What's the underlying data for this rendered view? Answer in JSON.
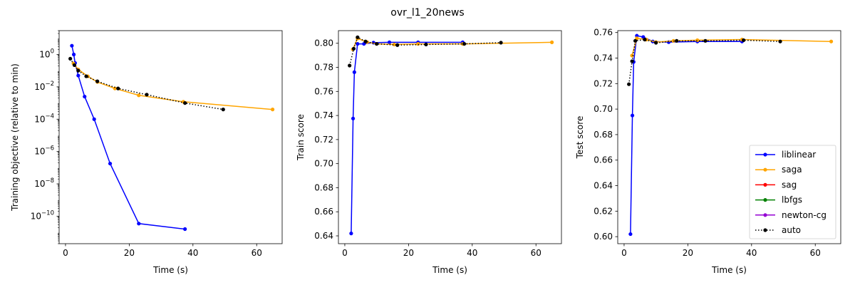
{
  "suptitle": "ovr_l1_20news",
  "chart_data": [
    {
      "type": "line",
      "xlabel": "Time (s)",
      "ylabel": "Training objective (relative to min)",
      "yscale": "log",
      "xlim": [
        -2,
        68
      ],
      "ylim": [
        2e-12,
        30
      ],
      "xticks": [
        0,
        20,
        40,
        60
      ],
      "xtick_labels": [
        "0",
        "20",
        "40",
        "60"
      ],
      "yticks": [
        1e-10,
        1e-08,
        1e-06,
        0.0001,
        0.01,
        1
      ],
      "ytick_labels": [
        {
          "base": "10",
          "exp": "−10"
        },
        {
          "base": "10",
          "exp": "−8"
        },
        {
          "base": "10",
          "exp": "−6"
        },
        {
          "base": "10",
          "exp": "−4"
        },
        {
          "base": "10",
          "exp": "−2"
        },
        {
          "base": "10",
          "exp": "0"
        }
      ],
      "series": [
        {
          "name": "liblinear",
          "color": "#0000ff",
          "style": "solid",
          "x": [
            2.0,
            2.6,
            3.0,
            4.0,
            6.0,
            9.0,
            14.0,
            23.0,
            37.5
          ],
          "y": [
            3.5,
            1.0,
            0.3,
            0.05,
            0.0025,
            0.0001,
            1.8e-07,
            3.5e-11,
            1.6e-11
          ]
        },
        {
          "name": "saga",
          "color": "#ffa500",
          "style": "solid",
          "x": [
            2.5,
            4.0,
            7.0,
            10.0,
            15.5,
            23.0,
            37.0,
            65.0
          ],
          "y": [
            0.28,
            0.12,
            0.045,
            0.02,
            0.008,
            0.003,
            0.0012,
            0.0004
          ]
        },
        {
          "name": "sag",
          "color": "#ff0000",
          "style": "solid",
          "x": [],
          "y": []
        },
        {
          "name": "lbfgs",
          "color": "#008000",
          "style": "solid",
          "x": [],
          "y": []
        },
        {
          "name": "newton-cg",
          "color": "#9400d3",
          "style": "solid",
          "x": [],
          "y": []
        },
        {
          "name": "auto",
          "color": "#000000",
          "style": "dotted",
          "x": [
            1.5,
            2.8,
            4.0,
            6.5,
            10.0,
            16.5,
            25.5,
            37.5,
            49.5
          ],
          "y": [
            0.55,
            0.22,
            0.1,
            0.045,
            0.022,
            0.008,
            0.0033,
            0.001,
            0.0004
          ]
        }
      ]
    },
    {
      "type": "line",
      "xlabel": "Time (s)",
      "ylabel": "Train score",
      "yscale": "linear",
      "xlim": [
        -2,
        68
      ],
      "ylim": [
        0.6335,
        0.8105
      ],
      "xticks": [
        0,
        20,
        40,
        60
      ],
      "xtick_labels": [
        "0",
        "20",
        "40",
        "60"
      ],
      "yticks": [
        0.64,
        0.66,
        0.68,
        0.7,
        0.72,
        0.74,
        0.76,
        0.78,
        0.8
      ],
      "ytick_labels": [
        "0.64",
        "0.66",
        "0.68",
        "0.70",
        "0.72",
        "0.74",
        "0.76",
        "0.78",
        "0.80"
      ],
      "series": [
        {
          "name": "liblinear",
          "color": "#0000ff",
          "style": "solid",
          "x": [
            2.0,
            2.6,
            3.0,
            4.0,
            6.0,
            9.0,
            14.0,
            23.0,
            37.0
          ],
          "y": [
            0.642,
            0.7375,
            0.776,
            0.7995,
            0.7995,
            0.8005,
            0.8008,
            0.8008,
            0.8008
          ]
        },
        {
          "name": "saga",
          "color": "#ffa500",
          "style": "solid",
          "x": [
            2.5,
            4.0,
            7.0,
            10.0,
            15.5,
            23.0,
            37.0,
            65.0
          ],
          "y": [
            0.795,
            0.804,
            0.801,
            0.7995,
            0.799,
            0.7995,
            0.7995,
            0.8008
          ]
        },
        {
          "name": "sag",
          "color": "#ff0000",
          "style": "solid",
          "x": [],
          "y": []
        },
        {
          "name": "lbfgs",
          "color": "#008000",
          "style": "solid",
          "x": [],
          "y": []
        },
        {
          "name": "newton-cg",
          "color": "#9400d3",
          "style": "solid",
          "x": [],
          "y": []
        },
        {
          "name": "auto",
          "color": "#000000",
          "style": "dotted",
          "x": [
            1.5,
            2.8,
            4.0,
            6.5,
            10.0,
            16.5,
            25.5,
            37.5,
            49.0
          ],
          "y": [
            0.7815,
            0.7955,
            0.805,
            0.8015,
            0.7995,
            0.7985,
            0.799,
            0.7995,
            0.8005
          ]
        }
      ]
    },
    {
      "type": "line",
      "xlabel": "Time (s)",
      "ylabel": "Test score",
      "yscale": "linear",
      "xlim": [
        -2,
        68
      ],
      "ylim": [
        0.5945,
        0.7615
      ],
      "xticks": [
        0,
        20,
        40,
        60
      ],
      "xtick_labels": [
        "0",
        "20",
        "40",
        "60"
      ],
      "yticks": [
        0.6,
        0.62,
        0.64,
        0.66,
        0.68,
        0.7,
        0.72,
        0.74,
        0.76
      ],
      "ytick_labels": [
        "0.60",
        "0.62",
        "0.64",
        "0.66",
        "0.68",
        "0.70",
        "0.72",
        "0.74",
        "0.76"
      ],
      "legend_position": "lower-right",
      "series": [
        {
          "name": "liblinear",
          "color": "#0000ff",
          "style": "solid",
          "x": [
            2.0,
            2.6,
            3.0,
            4.0,
            6.0,
            9.0,
            14.0,
            23.0,
            37.0
          ],
          "y": [
            0.602,
            0.695,
            0.737,
            0.7575,
            0.7565,
            0.753,
            0.7525,
            0.753,
            0.753
          ]
        },
        {
          "name": "saga",
          "color": "#ffa500",
          "style": "solid",
          "x": [
            2.5,
            4.0,
            7.0,
            10.0,
            15.5,
            23.0,
            37.0,
            65.0
          ],
          "y": [
            0.742,
            0.7555,
            0.7545,
            0.7525,
            0.7535,
            0.754,
            0.7545,
            0.753
          ]
        },
        {
          "name": "sag",
          "color": "#ff0000",
          "style": "solid",
          "x": [],
          "y": []
        },
        {
          "name": "lbfgs",
          "color": "#008000",
          "style": "solid",
          "x": [],
          "y": []
        },
        {
          "name": "newton-cg",
          "color": "#9400d3",
          "style": "solid",
          "x": [],
          "y": []
        },
        {
          "name": "auto",
          "color": "#000000",
          "style": "dotted",
          "x": [
            1.5,
            2.5,
            3.5,
            6.5,
            10.0,
            16.5,
            25.5,
            37.5,
            49.0
          ],
          "y": [
            0.7195,
            0.7375,
            0.7535,
            0.7545,
            0.752,
            0.7535,
            0.7535,
            0.754,
            0.753
          ]
        }
      ]
    }
  ]
}
